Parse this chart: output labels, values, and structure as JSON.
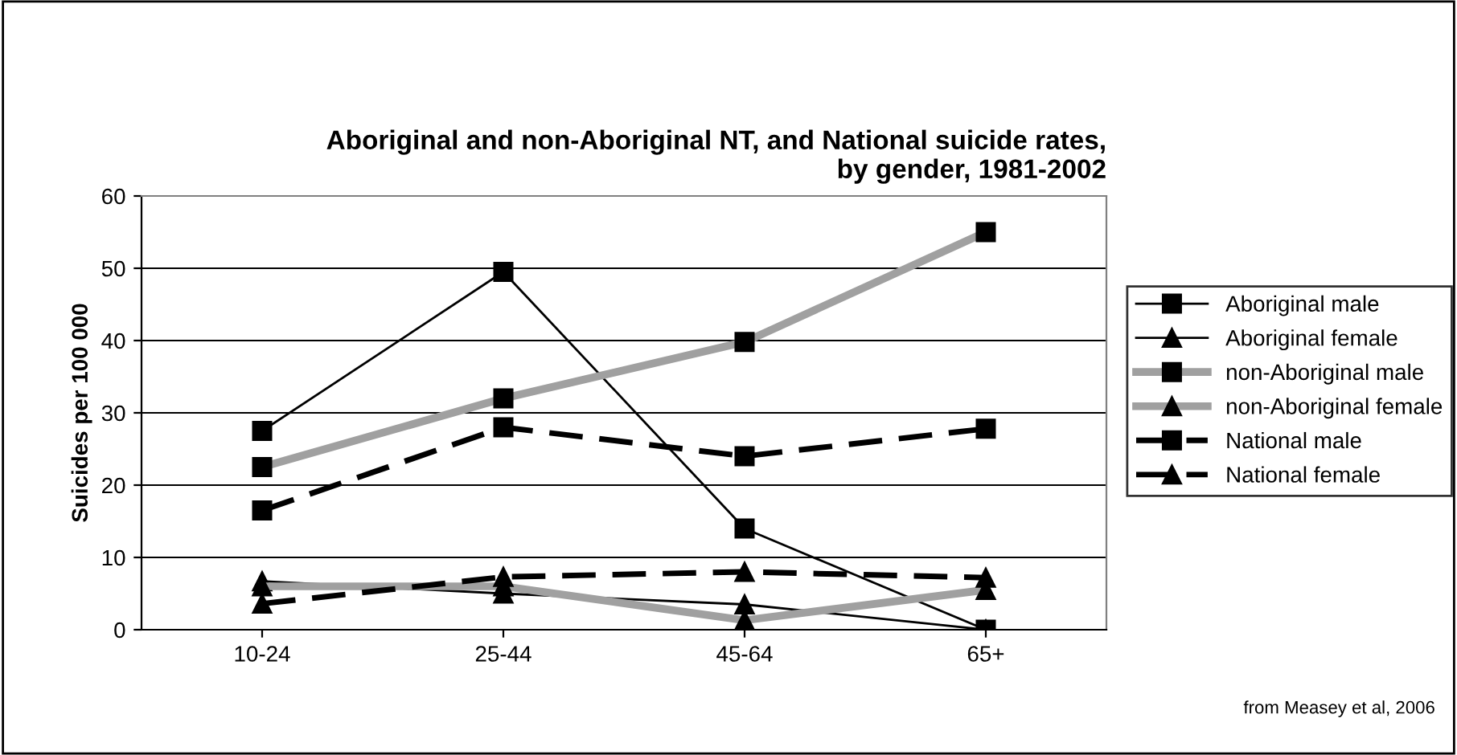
{
  "chart_data": {
    "type": "line",
    "title": "Aboriginal and non-Aboriginal NT, and National suicide rates,\nby gender, 1981-2002",
    "ylabel": "Suicides per 100 000",
    "categories": [
      "10-24",
      "25-44",
      "45-64",
      "65+"
    ],
    "series": [
      {
        "name": "Aboriginal male",
        "color": "#000000",
        "marker": "square",
        "line_style": "solid",
        "values": [
          27.5,
          49.5,
          14,
          0
        ]
      },
      {
        "name": "Aboriginal female",
        "color": "#000000",
        "marker": "triangle",
        "line_style": "solid",
        "values": [
          6.7,
          5,
          3.5,
          0
        ]
      },
      {
        "name": "non-Aboriginal male",
        "color": "#a0a0a0",
        "marker": "square",
        "line_style": "solid",
        "values": [
          22.5,
          32,
          39.8,
          55
        ]
      },
      {
        "name": "non-Aboriginal female",
        "color": "#a0a0a0",
        "marker": "triangle",
        "line_style": "solid",
        "values": [
          6,
          6,
          1.3,
          5.5
        ]
      },
      {
        "name": "National male",
        "color": "#000000",
        "marker": "square",
        "line_style": "dashed",
        "values": [
          16.5,
          28,
          24,
          27.8
        ]
      },
      {
        "name": "National female",
        "color": "#000000",
        "marker": "triangle",
        "line_style": "dashed",
        "values": [
          3.6,
          7.3,
          8,
          7.2
        ]
      }
    ],
    "ylim": [
      0,
      60
    ],
    "yticks": [
      0,
      10,
      20,
      30,
      40,
      50,
      60
    ],
    "grid": "y",
    "legend": "right",
    "annotations": [
      "from Measey et al, 2006"
    ]
  }
}
